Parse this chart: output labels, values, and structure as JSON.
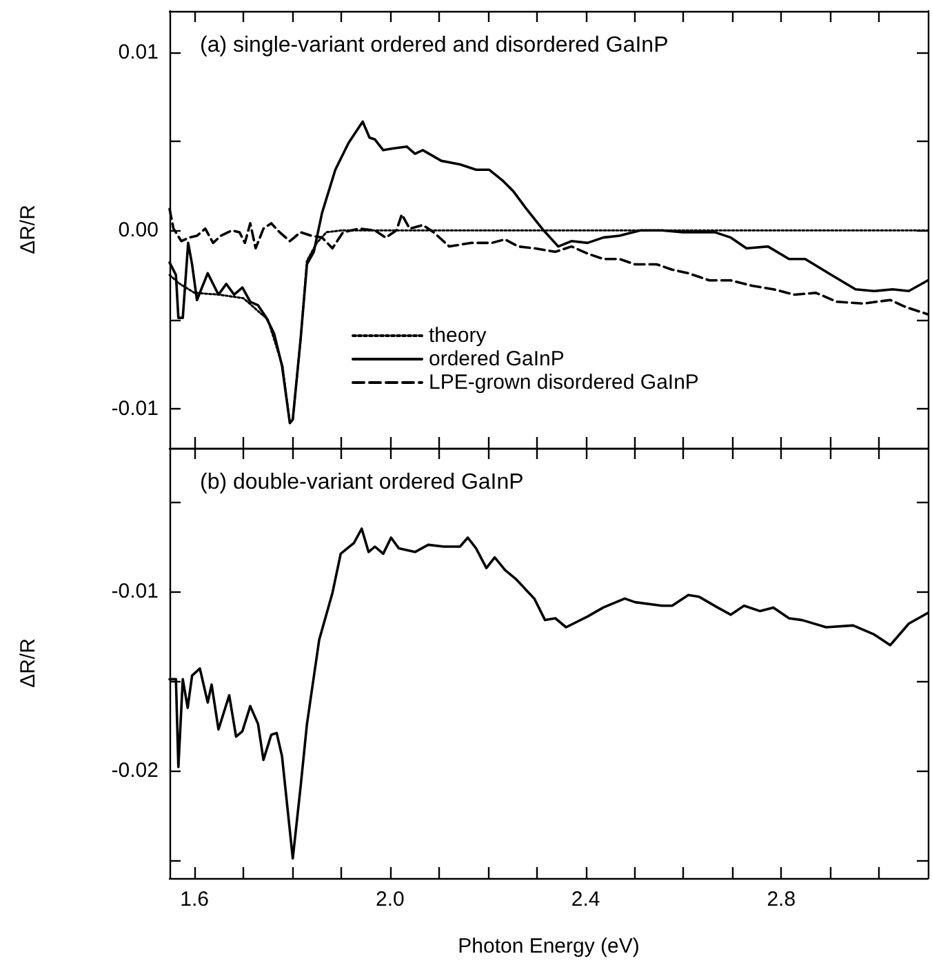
{
  "chart_data": [
    {
      "type": "line",
      "title": "(a) single-variant ordered and disordered GaInP",
      "ylabel": "ΔR/R",
      "xlim": [
        1.549,
        3.1
      ],
      "ylim": [
        -0.0122,
        0.0123
      ],
      "xticks": [
        {
          "value": 1.6,
          "label": null
        },
        {
          "value": 1.7,
          "label": null
        },
        {
          "value": 1.8,
          "label": null
        },
        {
          "value": 1.9,
          "label": null
        },
        {
          "value": 2,
          "label": null
        },
        {
          "value": 2.1,
          "label": null
        },
        {
          "value": 2.2,
          "label": null
        },
        {
          "value": 2.3,
          "label": null
        },
        {
          "value": 2.4,
          "label": null
        },
        {
          "value": 2.5,
          "label": null
        },
        {
          "value": 2.6,
          "label": null
        },
        {
          "value": 2.7,
          "label": null
        },
        {
          "value": 2.8,
          "label": null
        },
        {
          "value": 2.9,
          "label": null
        },
        {
          "value": 3,
          "label": null
        }
      ],
      "yticks": [
        -0.01,
        {
          "value": -0.005,
          "label": null
        },
        {
          "value": 0,
          "label": "0.00"
        },
        {
          "value": 0.005,
          "label": null
        },
        0.01
      ],
      "tick_labels": "y",
      "legend": "bottom",
      "series": [
        {
          "name": "theory",
          "color": "#000000",
          "line_style": "dotted",
          "x": [
            1.549,
            1.57,
            1.6,
            1.65,
            1.7,
            1.75,
            1.78,
            1.795,
            1.801,
            1.817,
            1.83,
            1.85,
            1.87,
            1.9,
            3.1
          ],
          "values": [
            -0.0025,
            -0.003,
            -0.0035,
            -0.0036,
            -0.0038,
            -0.005,
            -0.0076,
            -0.0108,
            -0.0106,
            -0.0061,
            -0.0017,
            -0.0007,
            -0.0001,
            0,
            0
          ]
        },
        {
          "name": "ordered GaInP",
          "color": "#000000",
          "line_style": "solid",
          "x": [
            1.549,
            1.562,
            1.567,
            1.576,
            1.587,
            1.595,
            1.605,
            1.627,
            1.649,
            1.665,
            1.681,
            1.698,
            1.714,
            1.73,
            1.747,
            1.763,
            1.779,
            1.795,
            1.801,
            1.817,
            1.83,
            1.844,
            1.861,
            1.888,
            1.915,
            1.944,
            1.958,
            1.969,
            1.986,
            2.007,
            2.034,
            2.051,
            2.067,
            2.105,
            2.143,
            2.176,
            2.203,
            2.23,
            2.252,
            2.279,
            2.311,
            2.344,
            2.371,
            2.404,
            2.436,
            2.469,
            2.512,
            2.556,
            2.599,
            2.664,
            2.697,
            2.729,
            2.773,
            2.816,
            2.849,
            2.903,
            2.952,
            2.99,
            3.028,
            3.061,
            3.1
          ],
          "values": [
            -0.0018,
            -0.0025,
            -0.0049,
            -0.0049,
            -0.0007,
            -0.0019,
            -0.0039,
            -0.0024,
            -0.0036,
            -0.003,
            -0.0036,
            -0.0032,
            -0.004,
            -0.0042,
            -0.0049,
            -0.0058,
            -0.0076,
            -0.0108,
            -0.0106,
            -0.0061,
            -0.0019,
            -0.0012,
            0.001,
            0.0034,
            0.0049,
            0.0061,
            0.0052,
            0.0051,
            0.0045,
            0.0046,
            0.0047,
            0.0043,
            0.0045,
            0.0039,
            0.0037,
            0.0034,
            0.0034,
            0.0028,
            0.0022,
            0.0012,
            0.0001,
            -0.0009,
            -0.0006,
            -0.0007,
            -0.0004,
            -0.0003,
            0,
            0,
            -0.0001,
            -0.0001,
            -0.0004,
            -0.001,
            -0.0009,
            -0.0016,
            -0.0016,
            -0.0025,
            -0.0033,
            -0.0034,
            -0.0033,
            -0.0034,
            -0.0028
          ]
        },
        {
          "name": "LPE-grown disordered GaInP",
          "color": "#000000",
          "line_style": "dashed",
          "x": [
            1.549,
            1.557,
            1.573,
            1.589,
            1.605,
            1.622,
            1.638,
            1.654,
            1.676,
            1.692,
            1.703,
            1.714,
            1.725,
            1.741,
            1.757,
            1.774,
            1.795,
            1.817,
            1.839,
            1.861,
            1.882,
            1.904,
            1.937,
            1.969,
            1.991,
            2.013,
            2.024,
            2.04,
            2.067,
            2.089,
            2.121,
            2.165,
            2.208,
            2.235,
            2.262,
            2.295,
            2.338,
            2.371,
            2.404,
            2.436,
            2.469,
            2.501,
            2.545,
            2.577,
            2.61,
            2.653,
            2.697,
            2.74,
            2.784,
            2.827,
            2.871,
            2.914,
            2.968,
            3.023,
            3.055,
            3.1
          ],
          "values": [
            0.0012,
            0.0001,
            -0.0006,
            -0.0004,
            -0.0003,
            0.0001,
            -0.0007,
            -0.0003,
            0,
            -0.0001,
            -0.0007,
            0.0004,
            -0.001,
            0.0001,
            0.0004,
            -0.0001,
            -0.0006,
            -0.0001,
            -0.0003,
            -0.0004,
            -0.001,
            -0.0001,
            0.0001,
            0,
            -0.0004,
            0,
            0.0009,
            0.0001,
            0.0003,
            -0.0001,
            -0.0009,
            -0.0007,
            -0.0007,
            -0.0005,
            -0.0009,
            -0.001,
            -0.0012,
            -0.0009,
            -0.0013,
            -0.0016,
            -0.0016,
            -0.0019,
            -0.0019,
            -0.0022,
            -0.0024,
            -0.0028,
            -0.0028,
            -0.0031,
            -0.0033,
            -0.0036,
            -0.0035,
            -0.004,
            -0.0041,
            -0.0039,
            -0.0043,
            -0.0047
          ]
        }
      ]
    },
    {
      "type": "line",
      "title": "(b) double-variant ordered GaInP",
      "xlabel": "Photon Energy (eV)",
      "ylabel": "ΔR/R",
      "xlim": [
        1.549,
        3.1
      ],
      "ylim": [
        -0.026,
        -0.002
      ],
      "xticks": [
        1.6,
        {
          "value": 1.7,
          "label": null
        },
        {
          "value": 1.8,
          "label": null
        },
        {
          "value": 1.9,
          "label": null
        },
        {
          "value": 2,
          "label": "2.0"
        },
        {
          "value": 2.1,
          "label": null
        },
        {
          "value": 2.2,
          "label": null
        },
        {
          "value": 2.3,
          "label": null
        },
        2.4,
        {
          "value": 2.5,
          "label": null
        },
        {
          "value": 2.6,
          "label": null
        },
        {
          "value": 2.7,
          "label": null
        },
        2.8,
        {
          "value": 2.9,
          "label": null
        },
        {
          "value": 3,
          "label": null
        }
      ],
      "yticks": [
        {
          "value": -0.025,
          "label": null
        },
        -0.02,
        {
          "value": -0.015,
          "label": null
        },
        -0.01,
        {
          "value": -0.005,
          "label": null
        }
      ],
      "series": [
        {
          "color": "#000000",
          "line_style": "solid",
          "x": [
            1.549,
            1.562,
            1.567,
            1.576,
            1.586,
            1.595,
            1.611,
            1.627,
            1.635,
            1.649,
            1.671,
            1.685,
            1.698,
            1.714,
            1.73,
            1.741,
            1.757,
            1.768,
            1.779,
            1.801,
            1.817,
            1.83,
            1.855,
            1.882,
            1.899,
            1.926,
            1.942,
            1.956,
            1.969,
            1.986,
            2.002,
            2.018,
            2.051,
            2.078,
            2.11,
            2.143,
            2.159,
            2.176,
            2.197,
            2.214,
            2.235,
            2.257,
            2.295,
            2.317,
            2.338,
            2.36,
            2.404,
            2.436,
            2.48,
            2.501,
            2.556,
            2.577,
            2.61,
            2.632,
            2.67,
            2.697,
            2.724,
            2.757,
            2.784,
            2.816,
            2.843,
            2.892,
            2.947,
            2.99,
            3.023,
            3.061,
            3.1
          ],
          "values": [
            -0.0149,
            -0.0149,
            -0.0198,
            -0.0149,
            -0.0165,
            -0.0147,
            -0.0143,
            -0.0162,
            -0.0152,
            -0.0177,
            -0.0158,
            -0.0181,
            -0.0178,
            -0.0164,
            -0.0174,
            -0.0194,
            -0.018,
            -0.0179,
            -0.0192,
            -0.0249,
            -0.0209,
            -0.0174,
            -0.0127,
            -0.0101,
            -0.0079,
            -0.0073,
            -0.0065,
            -0.0078,
            -0.0075,
            -0.0079,
            -0.007,
            -0.0076,
            -0.0078,
            -0.0074,
            -0.0075,
            -0.0075,
            -0.007,
            -0.0076,
            -0.0087,
            -0.0081,
            -0.0088,
            -0.0093,
            -0.0104,
            -0.0116,
            -0.0115,
            -0.012,
            -0.0114,
            -0.0109,
            -0.0104,
            -0.0106,
            -0.0108,
            -0.0108,
            -0.0102,
            -0.0103,
            -0.0109,
            -0.0113,
            -0.0108,
            -0.0111,
            -0.0109,
            -0.0115,
            -0.0116,
            -0.012,
            -0.0119,
            -0.0124,
            -0.013,
            -0.0118,
            -0.0112
          ]
        }
      ]
    }
  ]
}
